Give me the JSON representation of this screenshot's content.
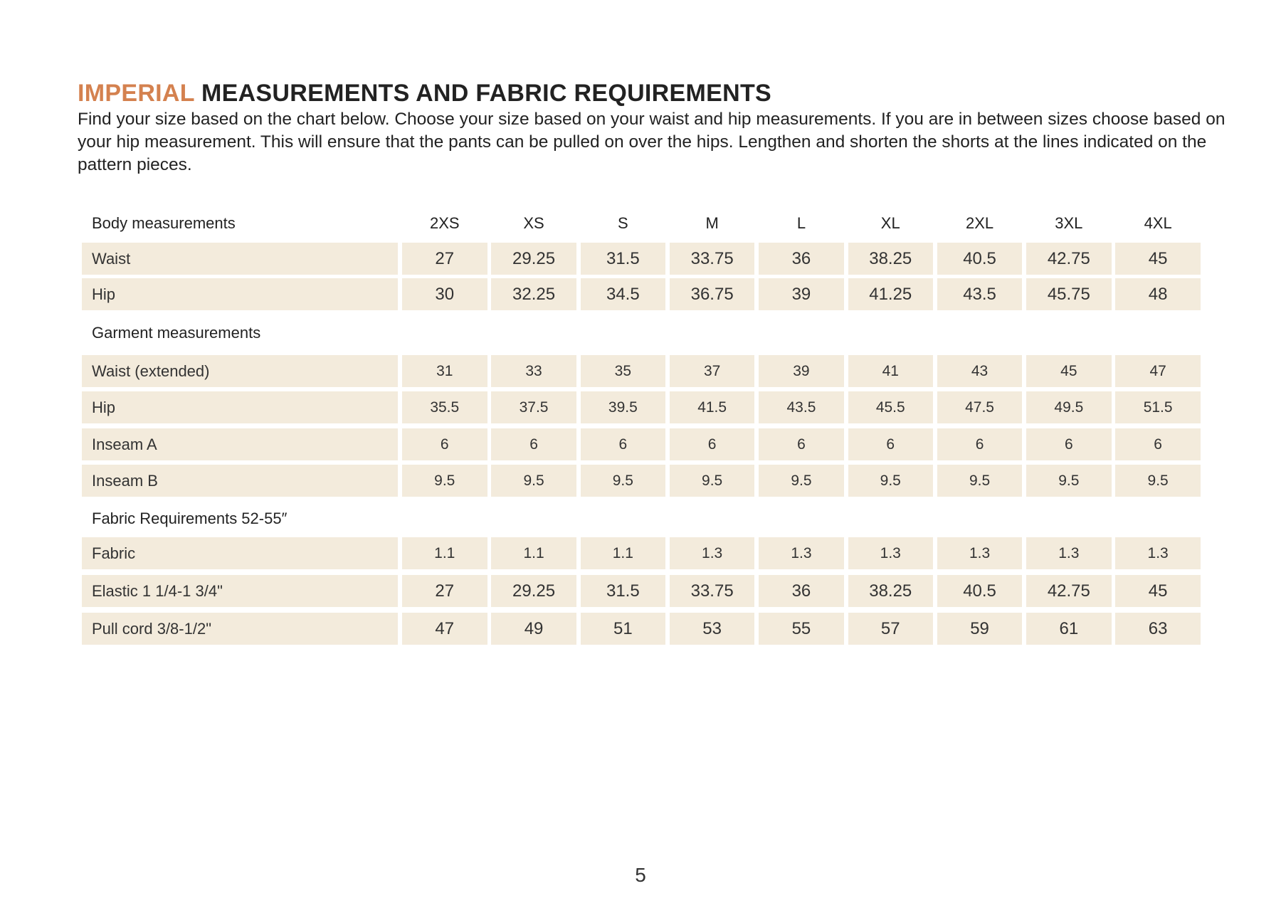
{
  "title": {
    "accent": "IMPERIAL",
    "rest": " MEASUREMENTS AND FABRIC REQUIREMENTS"
  },
  "intro": "Find your size based on the chart below. Choose your size based on your waist and hip measurements. If you are in between sizes choose based on your hip measurement. This will ensure that the pants can be pulled on over the hips. Lengthen and shorten the shorts at the lines indicated on the pattern pieces.",
  "colors": {
    "accent": "#d4814f",
    "cell_background": "#f3ebdc"
  },
  "sizes": [
    "2XS",
    "XS",
    "S",
    "M",
    "L",
    "XL",
    "2XL",
    "3XL",
    "4XL"
  ],
  "sections": [
    {
      "heading": "Body measurements",
      "show_sizes": true,
      "large": true,
      "rows": [
        {
          "label": "Waist",
          "values": [
            "27",
            "29.25",
            "31.5",
            "33.75",
            "36",
            "38.25",
            "40.5",
            "42.75",
            "45"
          ]
        },
        {
          "label": "Hip",
          "values": [
            "30",
            "32.25",
            "34.5",
            "36.75",
            "39",
            "41.25",
            "43.5",
            "45.75",
            "48"
          ]
        }
      ]
    },
    {
      "heading": "Garment measurements",
      "show_sizes": false,
      "large": false,
      "rows": [
        {
          "label": "Waist (extended)",
          "values": [
            "31",
            "33",
            "35",
            "37",
            "39",
            "41",
            "43",
            "45",
            "47"
          ]
        },
        {
          "label": "Hip",
          "values": [
            "35.5",
            "37.5",
            "39.5",
            "41.5",
            "43.5",
            "45.5",
            "47.5",
            "49.5",
            "51.5"
          ]
        },
        {
          "label": "Inseam A",
          "values": [
            "6",
            "6",
            "6",
            "6",
            "6",
            "6",
            "6",
            "6",
            "6"
          ]
        },
        {
          "label": "Inseam B",
          "values": [
            "9.5",
            "9.5",
            "9.5",
            "9.5",
            "9.5",
            "9.5",
            "9.5",
            "9.5",
            "9.5"
          ]
        }
      ]
    },
    {
      "heading": "Fabric Requirements 52-55″",
      "show_sizes": false,
      "large": false,
      "rows": [
        {
          "label": "Fabric",
          "values": [
            "1.1",
            "1.1",
            "1.1",
            "1.3",
            "1.3",
            "1.3",
            "1.3",
            "1.3",
            "1.3"
          ],
          "small": true
        },
        {
          "label": "Elastic 1 1/4-1 3/4\"",
          "values": [
            "27",
            "29.25",
            "31.5",
            "33.75",
            "36",
            "38.25",
            "40.5",
            "42.75",
            "45"
          ],
          "small": false
        },
        {
          "label": "Pull cord 3/8-1/2\"",
          "values": [
            "47",
            "49",
            "51",
            "53",
            "55",
            "57",
            "59",
            "61",
            "63"
          ],
          "small": false
        }
      ]
    }
  ],
  "page_number": "5"
}
